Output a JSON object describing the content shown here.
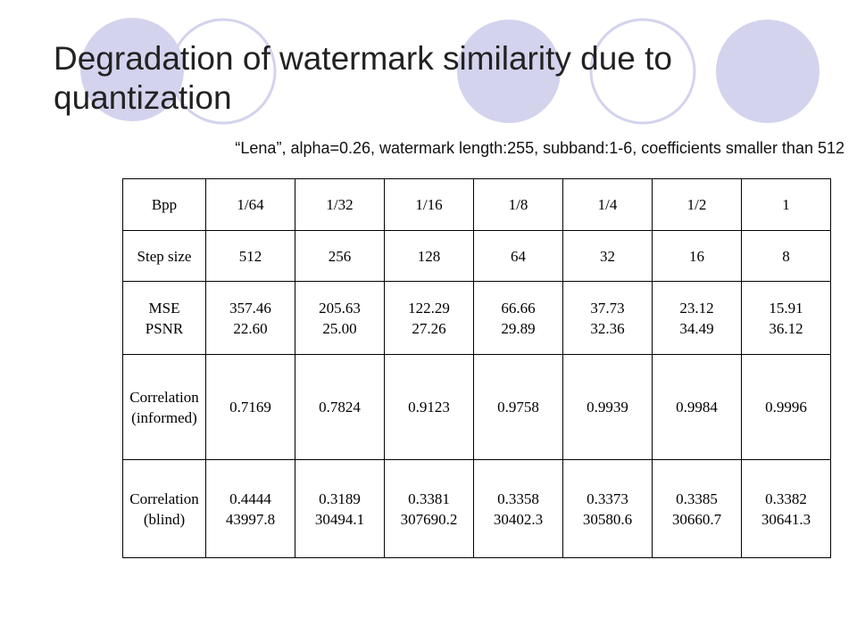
{
  "title": "Degradation of watermark similarity due to quantization",
  "subtitle": "“Lena”, alpha=0.26, watermark length:255, subband:1-6, coefficients smaller than 512",
  "table": {
    "rows": [
      [
        "Bpp",
        "1/64",
        "1/32",
        "1/16",
        "1/8",
        "1/4",
        "1/2",
        "1"
      ],
      [
        "Step size",
        "512",
        "256",
        "128",
        "64",
        "32",
        "16",
        "8"
      ],
      [
        [
          "MSE",
          "PSNR"
        ],
        [
          "357.46",
          "22.60"
        ],
        [
          "205.63",
          "25.00"
        ],
        [
          "122.29",
          "27.26"
        ],
        [
          "66.66",
          "29.89"
        ],
        [
          "37.73",
          "32.36"
        ],
        [
          "23.12",
          "34.49"
        ],
        [
          "15.91",
          "36.12"
        ]
      ],
      [
        "Correlation (informed)",
        "0.7169",
        "0.7824",
        "0.9123",
        "0.9758",
        "0.9939",
        "0.9984",
        "0.9996"
      ],
      [
        "Correlation (blind)",
        [
          "0.4444",
          "43997.8"
        ],
        [
          "0.3189",
          "30494.1"
        ],
        [
          "0.3381",
          "307690.2"
        ],
        [
          "0.3358",
          "30402.3"
        ],
        [
          "0.3373",
          "30580.6"
        ],
        [
          "0.3385",
          "30660.7"
        ],
        [
          "0.3382",
          "30641.3"
        ]
      ]
    ]
  }
}
